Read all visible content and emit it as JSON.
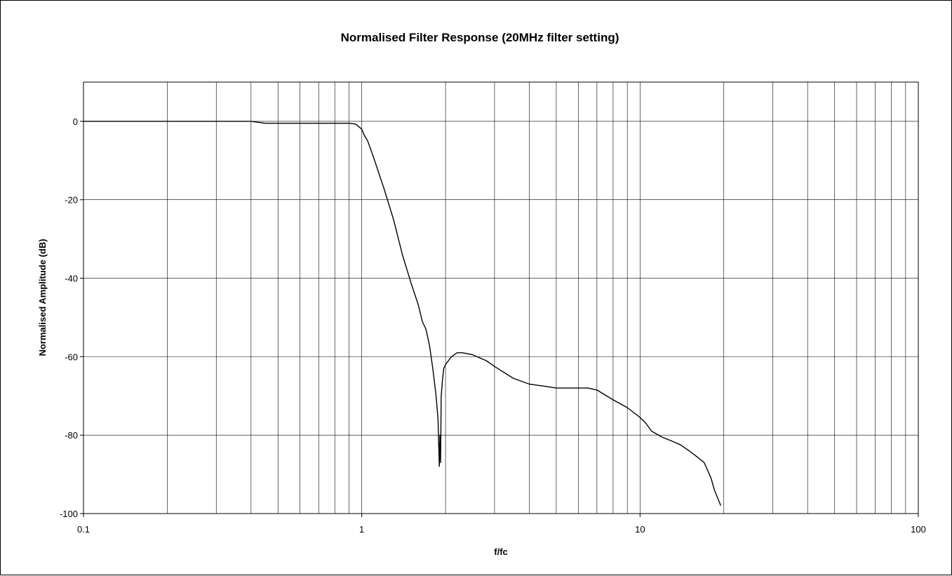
{
  "chart_data": {
    "type": "line",
    "title": "Normalised Filter Response (20MHz filter setting)",
    "xlabel": "f/fc",
    "ylabel": "Normalised Amplitude (dB)",
    "x_scale": "log",
    "xlim": [
      0.1,
      100
    ],
    "ylim": [
      -100,
      10
    ],
    "x_ticks": [
      0.1,
      1,
      10,
      100
    ],
    "x_tick_labels": [
      "0.1",
      "1",
      "10",
      "100"
    ],
    "y_ticks": [
      0,
      -20,
      -40,
      -60,
      -80,
      -100
    ],
    "y_tick_labels": [
      "0",
      "-20",
      "-40",
      "-60",
      "-80",
      "-100"
    ],
    "grid": true,
    "legend": "none",
    "colors": {
      "line": "#000000",
      "grid": "#000000",
      "background": "#ffffff"
    },
    "series": [
      {
        "x": [
          0.1,
          0.2,
          0.3,
          0.4,
          0.45,
          0.5,
          0.6,
          0.7,
          0.8,
          0.9,
          0.95,
          1.0,
          1.02,
          1.05,
          1.1,
          1.2,
          1.3,
          1.4,
          1.5,
          1.6,
          1.65,
          1.7,
          1.75,
          1.8,
          1.85,
          1.88,
          1.9,
          1.91,
          1.92,
          1.93,
          1.95,
          1.97,
          2.0,
          2.05,
          2.1,
          2.2,
          2.3,
          2.5,
          2.8,
          3.0,
          3.5,
          4.0,
          4.5,
          5.0,
          6.0,
          6.5,
          7.0,
          8.0,
          9.0,
          10.0,
          10.5,
          11.0,
          12.0,
          13.0,
          14.0,
          15.0,
          16.0,
          17.0,
          17.5,
          18.0,
          18.5,
          19.0,
          19.5
        ],
        "y": [
          0,
          0,
          0,
          0,
          -0.5,
          -0.5,
          -0.5,
          -0.5,
          -0.5,
          -0.5,
          -0.7,
          -2,
          -3.5,
          -5,
          -9,
          -17,
          -25,
          -34,
          -41,
          -47,
          -51,
          -53,
          -57,
          -63,
          -70,
          -76,
          -88,
          -80,
          -87,
          -70,
          -66,
          -63,
          -62,
          -61,
          -60,
          -59,
          -59,
          -59.5,
          -61,
          -62.5,
          -65.5,
          -67,
          -67.5,
          -68,
          -68,
          -68,
          -68.5,
          -71,
          -73,
          -75.5,
          -77,
          -79,
          -80.5,
          -81.5,
          -82.5,
          -84,
          -85.5,
          -87,
          -89,
          -91,
          -94,
          -96,
          -98
        ]
      }
    ]
  }
}
